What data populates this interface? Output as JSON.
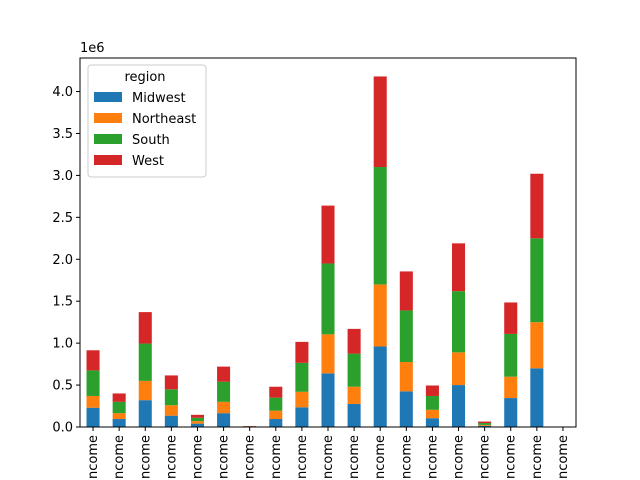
{
  "chart_data": {
    "type": "bar",
    "stacked": true,
    "categories": [
      "Income",
      "Income",
      "Income",
      "Income",
      "Income",
      "Income",
      "Income",
      "Income",
      "Income",
      "Income",
      "Income",
      "Income",
      "Income",
      "Income",
      "Income",
      "Income",
      "Income",
      "Income",
      "Income"
    ],
    "series": [
      {
        "name": "Midwest",
        "color": "#1f77b4",
        "values": [
          230000,
          95000,
          320000,
          135000,
          40000,
          165000,
          3000,
          95000,
          235000,
          640000,
          275000,
          960000,
          425000,
          105000,
          500000,
          15000,
          345000,
          700000,
          0
        ]
      },
      {
        "name": "Northeast",
        "color": "#ff7f0e",
        "values": [
          140000,
          70000,
          230000,
          125000,
          30000,
          135000,
          3000,
          100000,
          185000,
          465000,
          205000,
          740000,
          350000,
          100000,
          390000,
          10000,
          255000,
          550000,
          0
        ]
      },
      {
        "name": "South",
        "color": "#2ca02c",
        "values": [
          305000,
          135000,
          445000,
          190000,
          40000,
          240000,
          3000,
          155000,
          345000,
          845000,
          395000,
          1400000,
          615000,
          165000,
          730000,
          22000,
          510000,
          1000000,
          0
        ]
      },
      {
        "name": "West",
        "color": "#d62728",
        "values": [
          240000,
          100000,
          375000,
          165000,
          35000,
          180000,
          3000,
          130000,
          250000,
          690000,
          295000,
          1080000,
          465000,
          125000,
          570000,
          18000,
          375000,
          770000,
          0
        ]
      }
    ],
    "ylim": [
      0,
      4400000
    ],
    "yticks": [
      0,
      500000,
      1000000,
      1500000,
      2000000,
      2500000,
      3000000,
      3500000,
      4000000
    ],
    "ytick_labels": [
      "0.0",
      "0.5",
      "1.0",
      "1.5",
      "2.0",
      "2.5",
      "3.0",
      "3.5",
      "4.0"
    ],
    "y_offset_label": "1e6",
    "xlabel": "",
    "ylabel": "",
    "legend": {
      "title": "region",
      "placement": "upper-left"
    },
    "grid": false
  }
}
